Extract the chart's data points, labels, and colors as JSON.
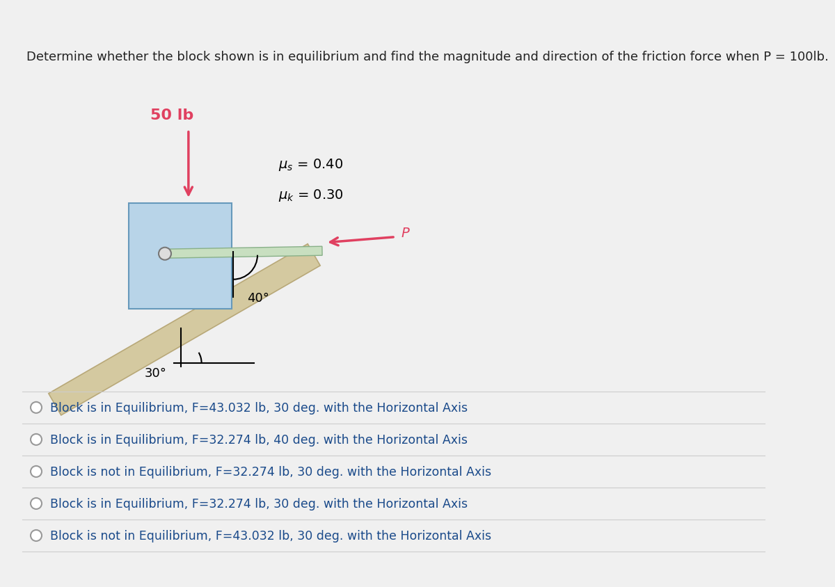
{
  "title": "Determine whether the block shown is in equilibrium and find the magnitude and direction of the friction force when P = 100lb.",
  "title_color": "#222222",
  "title_fontsize": 13.0,
  "bg_color": "#f0f0f0",
  "panel_bg": "#ffffff",
  "weight_label": "50 lb",
  "angle_p_label": "40°",
  "angle_surface_label": "30°",
  "P_label": "P",
  "options": [
    "Block is in Equilibrium, F=43.032 lb, 30 deg. with the Horizontal Axis",
    "Block is in Equilibrium, F=32.274 lb, 40 deg. with the Horizontal Axis",
    "Block is not in Equilibrium, F=32.274 lb, 30 deg. with the Horizontal Axis",
    "Block is in Equilibrium, F=32.274 lb, 30 deg. with the Horizontal Axis",
    "Block is not in Equilibrium, F=43.032 lb, 30 deg. with the Horizontal Axis"
  ],
  "option_color": "#1a4a8a",
  "option_fontsize": 12.5,
  "divider_color": "#cccccc",
  "block_color": "#b8d4e8",
  "block_edge_color": "#6699bb",
  "surface_color": "#d4c9a0",
  "surface_edge_color": "#b8a878",
  "rod_color": "#c8dfc0",
  "rod_edge_color": "#88b088",
  "arrow_color": "#e04060",
  "top_bar_color": "#d8d8d8"
}
